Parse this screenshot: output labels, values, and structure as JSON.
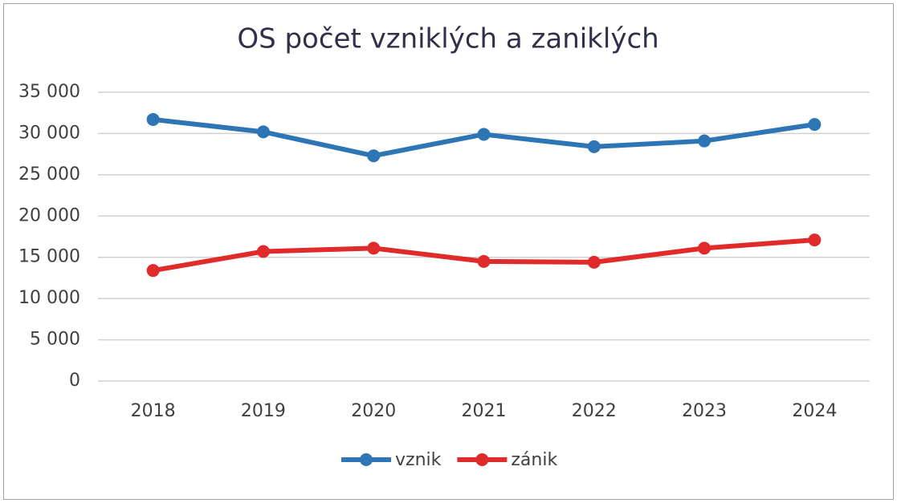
{
  "chart_data": {
    "type": "line",
    "title": "OS počet vzniklých a zaniklých",
    "categories": [
      "2018",
      "2019",
      "2020",
      "2021",
      "2022",
      "2023",
      "2024"
    ],
    "series": [
      {
        "name": "vznik",
        "color": "#2e75b6",
        "values": [
          31700,
          30200,
          27300,
          29900,
          28400,
          29100,
          31100
        ]
      },
      {
        "name": "zánik",
        "color": "#e02b2b",
        "values": [
          13400,
          15700,
          16100,
          14500,
          14400,
          16100,
          17100
        ]
      }
    ],
    "ylim": [
      0,
      35000
    ],
    "yticks": [
      0,
      {
        "value": 5000,
        "label": "5 000"
      },
      {
        "value": 10000,
        "label": "10 000"
      },
      {
        "value": 15000,
        "label": "15 000"
      },
      {
        "value": 20000,
        "label": "20 000"
      },
      {
        "value": 25000,
        "label": "25 000"
      },
      {
        "value": 30000,
        "label": "30 000"
      },
      {
        "value": 35000,
        "label": "35 000"
      }
    ],
    "grid": true,
    "legend": "bottom"
  }
}
